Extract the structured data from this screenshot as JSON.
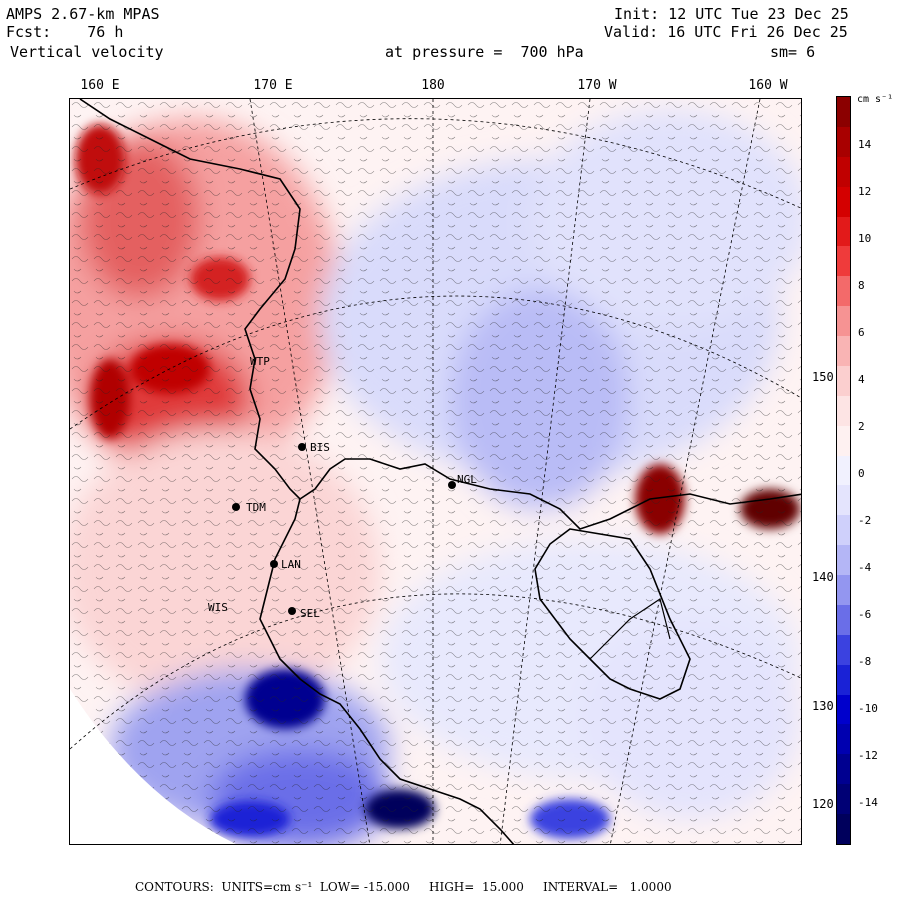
{
  "header": {
    "model": "AMPS 2.67-km MPAS",
    "fcst": "Fcst:    76 h",
    "field": "Vertical velocity",
    "pressure_label": "at pressure =  700 hPa",
    "init": "Init: 12 UTC Tue 23 Dec 25",
    "valid": "Valid: 16 UTC Fri 26 Dec 25",
    "smooth": "sm= 6"
  },
  "lon_labels": [
    "160 E",
    "170 E",
    "180",
    "170 W",
    "160 W"
  ],
  "lat_labels": [
    "150 W",
    "140 W",
    "130 W",
    "120 W"
  ],
  "stations": [
    "BIS",
    "NGL",
    "TDM",
    "LAN",
    "SEL",
    "WIS",
    "WTP"
  ],
  "colorbar": {
    "unit": "cm s⁻¹",
    "ticks": [
      "14",
      "12",
      "10",
      "8",
      "6",
      "4",
      "2",
      "0",
      "-2",
      "-4",
      "-6",
      "-8",
      "-10",
      "-12",
      "-14"
    ],
    "colors": [
      "#8b0000",
      "#a80000",
      "#c00000",
      "#d40000",
      "#e21a1a",
      "#ef3b3b",
      "#f36a6a",
      "#f69393",
      "#f9b4b4",
      "#fbcfcf",
      "#fde4e4",
      "#fef1f1",
      "#f1f1fe",
      "#e4e4fd",
      "#cfd0fb",
      "#b4b6f6",
      "#9396f0",
      "#6a6ee8",
      "#3b42e0",
      "#1a22d6",
      "#0000cc",
      "#0000b0",
      "#000090",
      "#000075",
      "#00005c"
    ]
  },
  "footer": "CONTOURS:  UNITS=cm s⁻¹  LOW= -15.000     HIGH=  15.000     INTERVAL=   1.0000"
}
